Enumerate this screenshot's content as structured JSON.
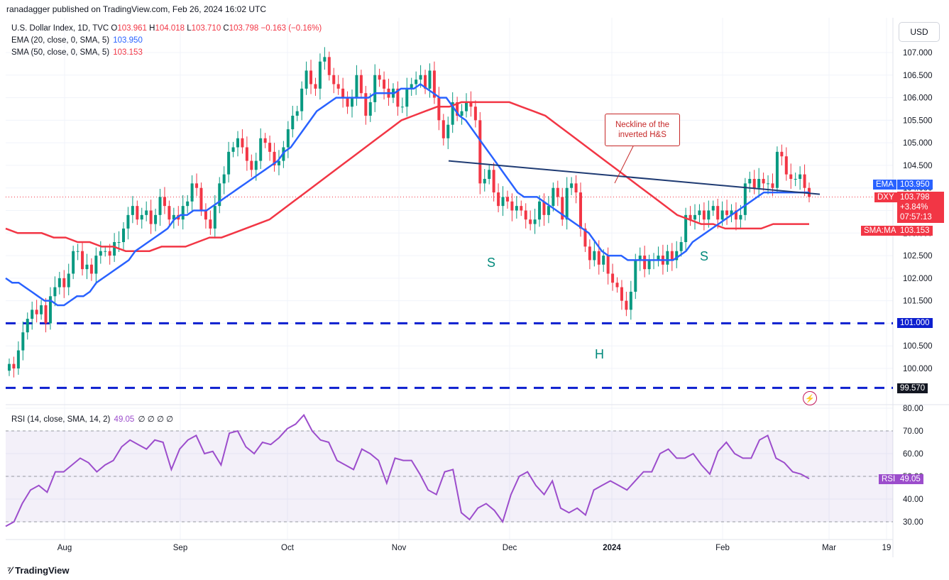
{
  "publisher": "ranadagger published on TradingView.com, Feb 26, 2024 16:02 UTC",
  "currency": "USD",
  "footer": "TradingView",
  "legend": {
    "symbol": "U.S. Dollar Index, 1D, TVC",
    "o_label": "O",
    "o": "103.961",
    "h_label": "H",
    "h": "104.018",
    "l_label": "L",
    "l": "103.710",
    "c_label": "C",
    "c": "103.798",
    "change": "−0.163 (−0.16%)",
    "ema_label": "EMA (20, close, 0, SMA, 5)",
    "ema_value": "103.950",
    "sma_label": "SMA (50, close, 0, SMA, 5)",
    "sma_value": "103.153",
    "rsi_label": "RSI (14, close, SMA, 14, 2)",
    "rsi_value": "49.05",
    "rsi_extra": "∅ ∅ ∅ ∅"
  },
  "price_labels": {
    "ema": {
      "tag": "EMA",
      "value": "103.950"
    },
    "dxy": {
      "tag": "DXY",
      "value": "103.798",
      "change": "+3.84%",
      "countdown": "07:57:13"
    },
    "sma": {
      "tag": "SMA:MA",
      "value": "103.153"
    },
    "support1": "101.000",
    "support2": "99.570",
    "rsi": {
      "tag": "RSI",
      "value": "49.05"
    }
  },
  "annotation": {
    "line1": "Neckline of the",
    "line2": "inverted H&S"
  },
  "pattern_labels": {
    "left_shoulder": "S",
    "head": "H",
    "right_shoulder": "S"
  },
  "colors": {
    "up": "#089981",
    "down": "#f23645",
    "ema": "#2962ff",
    "sma": "#f23645",
    "rsi": "#9c4dcc",
    "support": "#0d1fcf",
    "neckline": "#1f3b73"
  },
  "chart_data": {
    "type": "candlestick",
    "title": "U.S. Dollar Index, 1D, TVC",
    "x_tick_labels": [
      "Aug",
      "Sep",
      "Oct",
      "Nov",
      "Dec",
      "2024",
      "Feb",
      "Mar",
      "19"
    ],
    "y_tick_labels": [
      "100.000",
      "100.500",
      "101.000",
      "101.500",
      "102.000",
      "102.500",
      "103.000",
      "103.500",
      "104.000",
      "104.500",
      "105.000",
      "105.500",
      "106.000",
      "106.500",
      "107.000"
    ],
    "ylim": [
      99.4,
      107.5
    ],
    "rsi_tick_labels": [
      "30.00",
      "40.00",
      "50.00",
      "60.00",
      "70.00",
      "80.00"
    ],
    "rsi_ylim": [
      27,
      81
    ],
    "close": [
      100.1,
      100.0,
      100.4,
      100.8,
      101.1,
      101.3,
      101.2,
      101.4,
      101.0,
      101.6,
      101.8,
      102.0,
      101.8,
      102.1,
      102.6,
      102.6,
      102.2,
      102.3,
      102.1,
      102.5,
      102.6,
      102.6,
      102.5,
      102.8,
      102.8,
      103.1,
      103.4,
      103.6,
      103.3,
      103.4,
      103.5,
      103.2,
      103.4,
      103.8,
      103.6,
      103.3,
      103.4,
      103.3,
      103.6,
      103.7,
      104.1,
      104.0,
      103.5,
      103.3,
      103.1,
      103.6,
      104.1,
      104.3,
      104.8,
      104.9,
      105.1,
      104.9,
      104.6,
      104.4,
      104.6,
      105.1,
      105.0,
      104.8,
      104.5,
      104.6,
      104.9,
      105.3,
      105.6,
      105.7,
      106.2,
      106.6,
      106.3,
      106.2,
      106.8,
      106.9,
      106.5,
      106.3,
      106.2,
      106.0,
      105.8,
      106.0,
      106.5,
      106.1,
      105.6,
      105.9,
      106.5,
      106.4,
      106.2,
      106.0,
      106.2,
      105.8,
      105.8,
      106.2,
      106.3,
      106.4,
      106.5,
      106.2,
      106.6,
      106.0,
      105.5,
      105.1,
      105.4,
      105.9,
      105.6,
      105.7,
      105.9,
      105.8,
      105.5,
      104.1,
      104.2,
      104.4,
      103.9,
      103.6,
      103.8,
      103.7,
      103.5,
      103.6,
      103.5,
      103.3,
      103.2,
      103.3,
      103.7,
      103.4,
      103.6,
      104.0,
      103.8,
      103.3,
      104.0,
      104.1,
      103.9,
      103.1,
      102.7,
      102.4,
      102.6,
      102.3,
      102.5,
      102.1,
      101.9,
      101.8,
      101.5,
      101.3,
      101.7,
      102.4,
      102.5,
      102.2,
      102.4,
      102.4,
      102.5,
      102.3,
      102.6,
      102.4,
      102.6,
      102.8,
      103.4,
      103.3,
      103.4,
      103.5,
      103.3,
      103.5,
      103.6,
      103.3,
      103.5,
      103.4,
      103.5,
      103.3,
      103.4,
      104.1,
      104.2,
      104.0,
      104.2,
      104.1,
      104.1,
      104.0,
      104.8,
      104.7,
      104.3,
      104.2,
      104.2,
      104.3,
      104.0,
      103.8
    ],
    "ema": [
      102.0,
      101.9,
      101.9,
      101.8,
      101.7,
      101.6,
      101.5,
      101.5,
      101.4,
      101.4,
      101.5,
      101.6,
      101.6,
      101.7,
      101.9,
      102.0,
      102.1,
      102.2,
      102.3,
      102.4,
      102.6,
      102.7,
      102.8,
      102.9,
      103.0,
      103.1,
      103.3,
      103.4,
      103.4,
      103.5,
      103.5,
      103.5,
      103.6,
      103.7,
      103.8,
      103.9,
      104.0,
      104.1,
      104.2,
      104.3,
      104.4,
      104.5,
      104.6,
      104.8,
      104.9,
      105.1,
      105.3,
      105.5,
      105.7,
      105.8,
      105.9,
      106.0,
      106.0,
      106.0,
      106.0,
      106.0,
      106.0,
      106.1,
      106.1,
      106.1,
      106.1,
      106.2,
      106.2,
      106.2,
      106.3,
      106.2,
      106.1,
      106.0,
      106.0,
      105.8,
      105.6,
      105.5,
      105.3,
      105.1,
      104.9,
      104.7,
      104.5,
      104.3,
      104.1,
      103.9,
      103.8,
      103.8,
      103.8,
      103.7,
      103.6,
      103.5,
      103.4,
      103.3,
      103.2,
      103.1,
      103.0,
      102.8,
      102.6,
      102.5,
      102.5,
      102.5,
      102.4,
      102.4,
      102.4,
      102.4,
      102.4,
      102.4,
      102.4,
      102.4,
      102.5,
      102.6,
      102.8,
      102.9,
      103.0,
      103.1,
      103.2,
      103.3,
      103.4,
      103.5,
      103.6,
      103.7,
      103.8,
      103.9,
      103.9,
      103.9,
      103.9,
      103.9,
      103.9,
      103.9,
      103.9
    ],
    "sma": [
      103.1,
      103.0,
      103.0,
      103.0,
      102.9,
      102.9,
      102.8,
      102.8,
      102.7,
      102.7,
      102.6,
      102.6,
      102.6,
      102.7,
      102.7,
      102.7,
      102.8,
      102.9,
      102.9,
      103.0,
      103.1,
      103.2,
      103.3,
      103.5,
      103.7,
      103.9,
      104.1,
      104.3,
      104.5,
      104.7,
      104.9,
      105.1,
      105.3,
      105.5,
      105.6,
      105.7,
      105.8,
      105.8,
      105.9,
      105.9,
      105.9,
      105.9,
      105.9,
      105.8,
      105.7,
      105.6,
      105.4,
      105.2,
      105.0,
      104.8,
      104.6,
      104.4,
      104.2,
      104.0,
      103.8,
      103.6,
      103.4,
      103.3,
      103.2,
      103.2,
      103.1,
      103.1,
      103.1,
      103.1,
      103.2,
      103.2,
      103.2,
      103.2
    ],
    "rsi": [
      28,
      30,
      38,
      44,
      46,
      43,
      52,
      52,
      55,
      58,
      56,
      52,
      55,
      57,
      63,
      66,
      64,
      62,
      66,
      65,
      53,
      62,
      66,
      68,
      60,
      61,
      55,
      69,
      70,
      63,
      60,
      65,
      64,
      67,
      71,
      73,
      77,
      70,
      66,
      65,
      57,
      55,
      53,
      62,
      60,
      57,
      47,
      58,
      57,
      57,
      51,
      44,
      42,
      52,
      53,
      34,
      31,
      36,
      38,
      35,
      30,
      42,
      50,
      52,
      46,
      42,
      48,
      36,
      34,
      36,
      33,
      44,
      46,
      48,
      46,
      44,
      48,
      52,
      52,
      60,
      62,
      58,
      58,
      60,
      55,
      51,
      61,
      65,
      60,
      58,
      58,
      66,
      68,
      58,
      56,
      52,
      51,
      49
    ],
    "support_levels": [
      101.0,
      99.57
    ],
    "neckline": [
      [
        104.6,
        103.86
      ]
    ],
    "ema_last": 103.95,
    "sma_last": 103.153,
    "last_close": 103.798
  }
}
